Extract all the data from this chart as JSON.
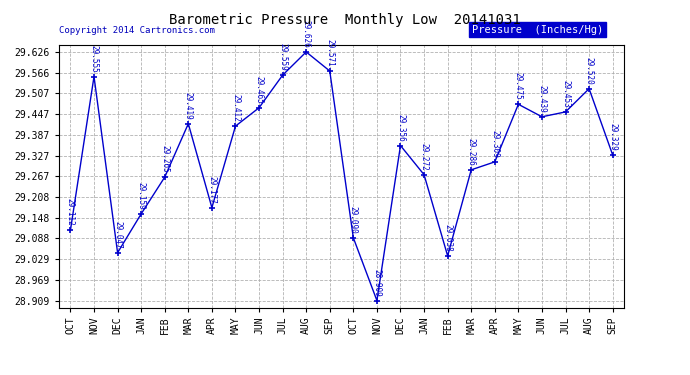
{
  "title": "Barometric Pressure  Monthly Low  20141031",
  "copyright": "Copyright 2014 Cartronics.com",
  "legend_label": "Pressure  (Inches/Hg)",
  "months": [
    "OCT",
    "NOV",
    "DEC",
    "JAN",
    "FEB",
    "MAR",
    "APR",
    "MAY",
    "JUN",
    "JUL",
    "AUG",
    "SEP",
    "OCT",
    "NOV",
    "DEC",
    "JAN",
    "FEB",
    "MAR",
    "APR",
    "MAY",
    "JUN",
    "JUL",
    "AUG",
    "SEP"
  ],
  "values": [
    29.112,
    29.555,
    29.047,
    29.159,
    29.265,
    29.419,
    29.177,
    29.412,
    29.465,
    29.559,
    29.626,
    29.571,
    29.09,
    28.909,
    29.356,
    29.272,
    29.038,
    29.286,
    29.309,
    29.475,
    29.439,
    29.453,
    29.52,
    29.329
  ],
  "ylim_min": 28.889,
  "ylim_max": 29.646,
  "line_color": "#0000cc",
  "bg_color": "#ffffff",
  "grid_color": "#aaaaaa",
  "title_color": "#000000",
  "label_color": "#0000cc",
  "copyright_color": "#0000bb",
  "legend_bg": "#0000cc",
  "legend_text_color": "#ffffff",
  "ytick_values": [
    28.909,
    28.969,
    29.029,
    29.088,
    29.148,
    29.208,
    29.267,
    29.327,
    29.387,
    29.447,
    29.507,
    29.566,
    29.626
  ]
}
